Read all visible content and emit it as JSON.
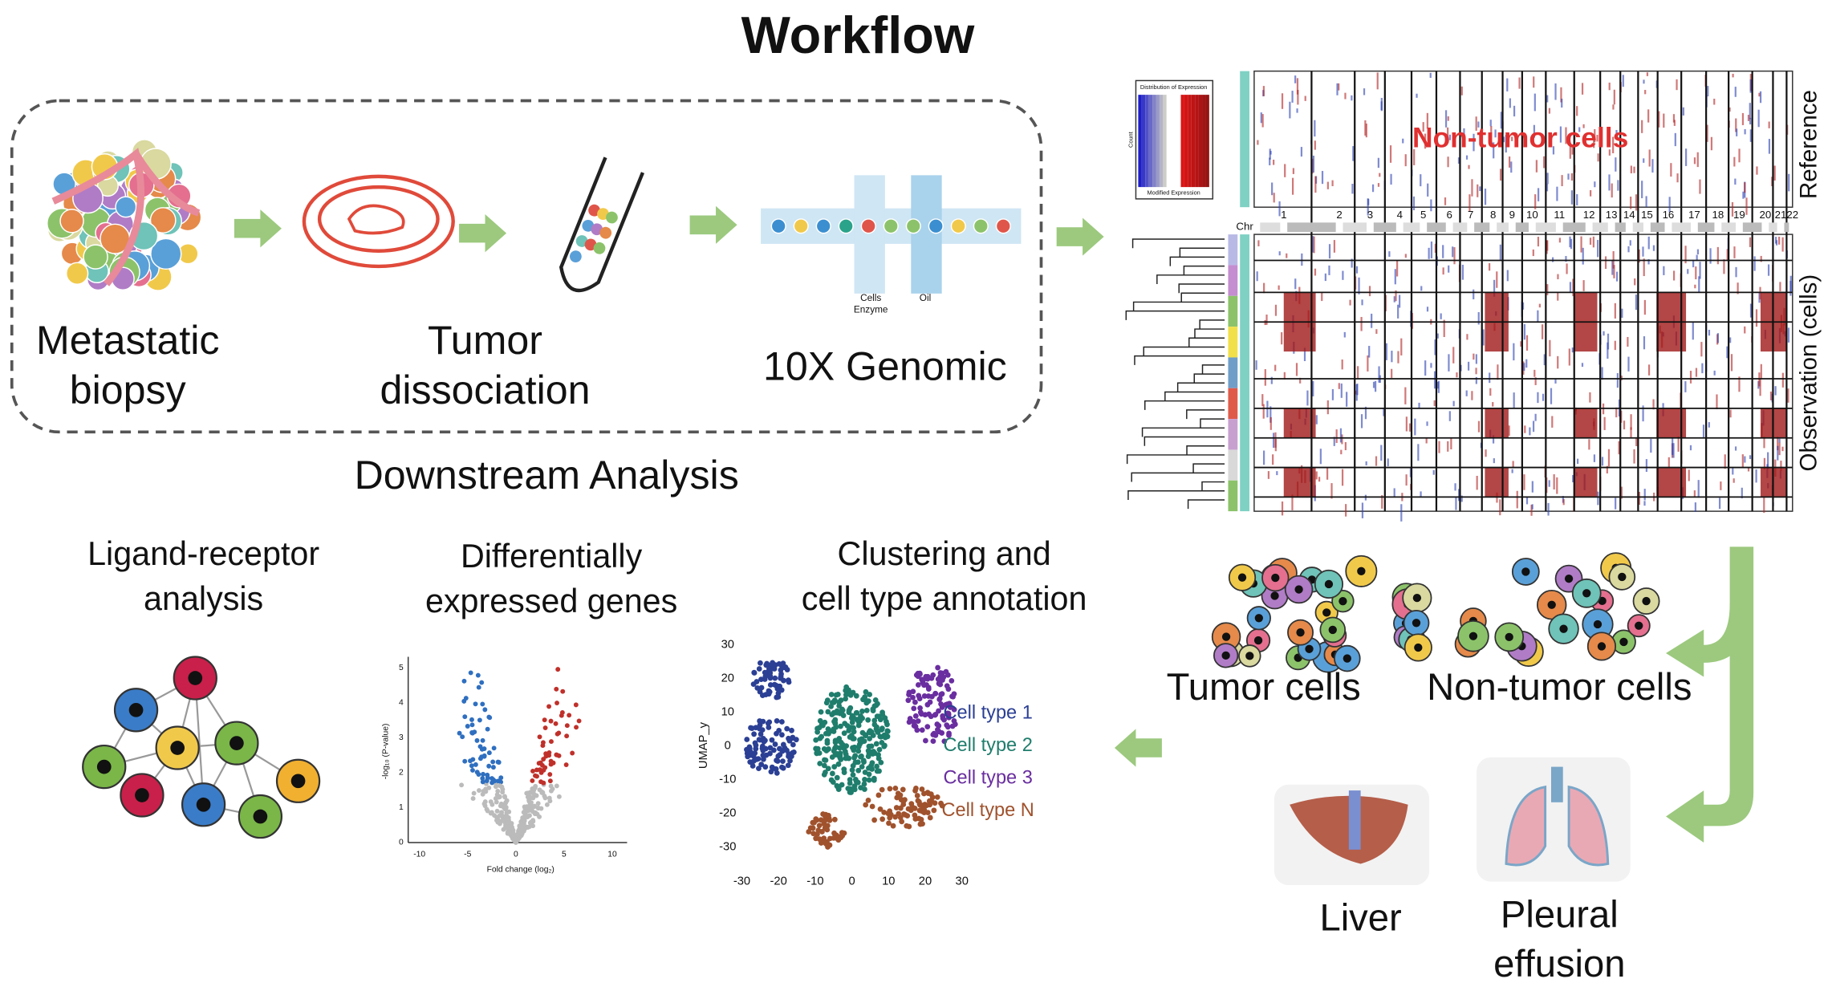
{
  "title": "Workflow",
  "steps": [
    [
      "Metastatic",
      "biopsy"
    ],
    [
      "Tumor",
      "dissociation"
    ],
    [
      "10X Genomic"
    ]
  ],
  "chip_labels": [
    "Cells",
    "Enzyme",
    "Oil"
  ],
  "downstream": "Downstream Analysis",
  "analyses": [
    [
      "Ligand-receptor",
      "analysis"
    ],
    [
      "Differentially",
      "expressed genes"
    ],
    [
      "Clustering and",
      "cell type annotation"
    ]
  ],
  "heatmap": {
    "legend_title": "Distribution of Expression",
    "legend_x": "Modified Expression",
    "legend_y": "Count",
    "annotation": "Non-tumor cells",
    "reference": "Reference",
    "observation": "Observation (cells)",
    "chr_label": "Chr",
    "chromosomes": [
      "1",
      "2",
      "3",
      "4",
      "5",
      "6",
      "7",
      "8",
      "9",
      "10",
      "11",
      "12",
      "13",
      "14",
      "15",
      "16",
      "17",
      "18",
      "19",
      "20",
      "21",
      "22"
    ]
  },
  "cell_groups": [
    "Tumor cells",
    "Non-tumor cells"
  ],
  "sites": [
    [
      "Liver"
    ],
    [
      "Pleural",
      "effusion"
    ]
  ],
  "volcano": {
    "x_label": "Fold change (log₂)",
    "y_label": "-log₁₀ (P-value)",
    "xticks": [
      -10,
      -5,
      0,
      5,
      10
    ],
    "yticks": [
      0,
      1,
      2,
      3,
      4,
      5
    ]
  },
  "umap": {
    "y_label": "UMAP_y",
    "xticks": [
      -30,
      -20,
      -10,
      0,
      10,
      20,
      30
    ],
    "yticks": [
      30,
      20,
      10,
      0,
      -10,
      -20,
      -30
    ],
    "legend": [
      {
        "name": "Cell type 1",
        "color": "#2b3f94"
      },
      {
        "name": "Cell type 2",
        "color": "#1f7d6c"
      },
      {
        "name": "Cell type 3",
        "color": "#6a2ea0"
      },
      {
        "name": "Cell type N",
        "color": "#a0522d"
      }
    ]
  }
}
